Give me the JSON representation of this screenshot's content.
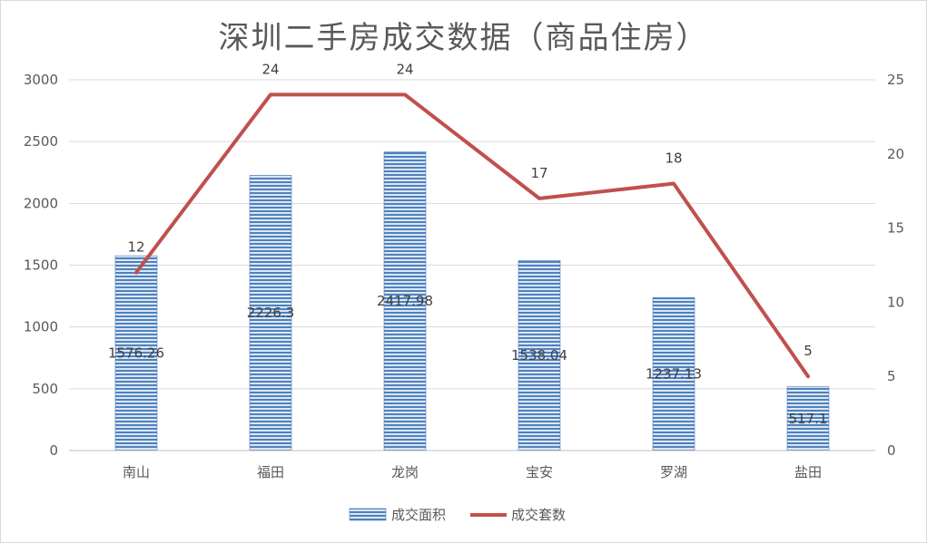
{
  "chart_data": {
    "type": "bar",
    "title": "深圳二手房成交数据（商品住房）",
    "categories": [
      "南山",
      "福田",
      "龙岗",
      "宝安",
      "罗湖",
      "盐田"
    ],
    "series": [
      {
        "name": "成交面积",
        "type": "bar",
        "axis": "left",
        "values": [
          1576.26,
          2226.3,
          2417.98,
          1538.04,
          1237.13,
          517.1
        ],
        "labels": [
          "1576.26",
          "2226.3",
          "2417.98",
          "1538.04",
          "1237.13",
          "517.1"
        ],
        "color": "#5b8fd0"
      },
      {
        "name": "成交套数",
        "type": "line",
        "axis": "right",
        "values": [
          12,
          24,
          24,
          17,
          18,
          5
        ],
        "labels": [
          "12",
          "24",
          "24",
          "17",
          "18",
          "5"
        ],
        "color": "#c0504d"
      }
    ],
    "y_left": {
      "min": 0,
      "max": 3000,
      "ticks": [
        "0",
        "500",
        "1000",
        "1500",
        "2000",
        "2500",
        "3000"
      ]
    },
    "y_right": {
      "min": 0,
      "max": 25,
      "ticks": [
        "0",
        "5",
        "10",
        "15",
        "20",
        "25"
      ]
    },
    "grid": true,
    "legend": "bottom"
  }
}
